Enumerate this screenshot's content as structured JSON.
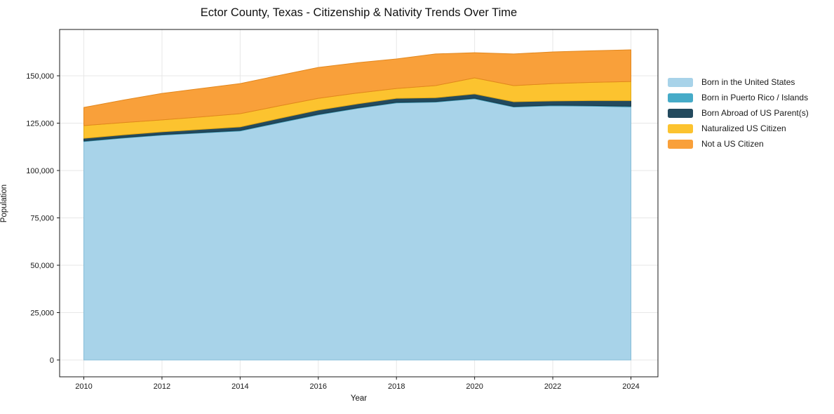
{
  "chart_data": {
    "type": "area",
    "stacked": true,
    "title": "Ector County, Texas - Citizenship & Nativity Trends Over Time",
    "xlabel": "Year",
    "ylabel": "Population",
    "grid": true,
    "legend_position": "right-outside",
    "x": [
      2010,
      2011,
      2012,
      2013,
      2014,
      2015,
      2016,
      2017,
      2018,
      2019,
      2020,
      2021,
      2022,
      2023,
      2024
    ],
    "series": [
      {
        "name": "Born in the United States",
        "color": "#a8d3e9",
        "edge": "#86bdd8",
        "values": [
          115300,
          117100,
          118700,
          119800,
          120900,
          125200,
          129400,
          132800,
          135700,
          136100,
          137900,
          133500,
          134200,
          134000,
          133600
        ]
      },
      {
        "name": "Born in Puerto Rico / Islands",
        "color": "#46abc8",
        "edge": "#3a93ad",
        "values": [
          300,
          300,
          300,
          300,
          300,
          300,
          300,
          300,
          300,
          300,
          300,
          300,
          300,
          300,
          400
        ]
      },
      {
        "name": "Born Abroad of US Parent(s)",
        "color": "#234a5e",
        "edge": "#1b3a4a",
        "values": [
          1400,
          1400,
          1400,
          1600,
          1800,
          2000,
          2200,
          2100,
          2100,
          2000,
          2200,
          2500,
          2200,
          2600,
          2900
        ]
      },
      {
        "name": "Naturalized US Citizen",
        "color": "#fcc32f",
        "edge": "#e3a914",
        "values": [
          6700,
          6500,
          6300,
          6600,
          7000,
          6600,
          6200,
          5700,
          5200,
          6400,
          8500,
          8500,
          9200,
          9600,
          10100
        ]
      },
      {
        "name": "Not a US Citizen",
        "color": "#f9a03a",
        "edge": "#e2871d",
        "values": [
          9600,
          11800,
          14000,
          15000,
          15900,
          16100,
          16300,
          16000,
          15600,
          16700,
          13300,
          16700,
          16700,
          16700,
          16700
        ]
      }
    ],
    "xticks": [
      {
        "value": 2010,
        "label": "2010"
      },
      {
        "value": 2012,
        "label": "2012"
      },
      {
        "value": 2014,
        "label": "2014"
      },
      {
        "value": 2016,
        "label": "2016"
      },
      {
        "value": 2018,
        "label": "2018"
      },
      {
        "value": 2020,
        "label": "2020"
      },
      {
        "value": 2022,
        "label": "2022"
      },
      {
        "value": 2024,
        "label": "2024"
      }
    ],
    "yticks": [
      {
        "value": 0,
        "label": "0"
      },
      {
        "value": 25000,
        "label": "25,000"
      },
      {
        "value": 50000,
        "label": "50,000"
      },
      {
        "value": 75000,
        "label": "75,000"
      },
      {
        "value": 100000,
        "label": "100,000"
      },
      {
        "value": 125000,
        "label": "125,000"
      },
      {
        "value": 150000,
        "label": "150,000"
      }
    ],
    "ylim": [
      -8900,
      174500
    ],
    "xlim": [
      2009.38,
      2024.69
    ],
    "colors": {
      "grid": "#e7e7e7",
      "frame": "#1a1a1a",
      "background": "#ffffff"
    }
  }
}
